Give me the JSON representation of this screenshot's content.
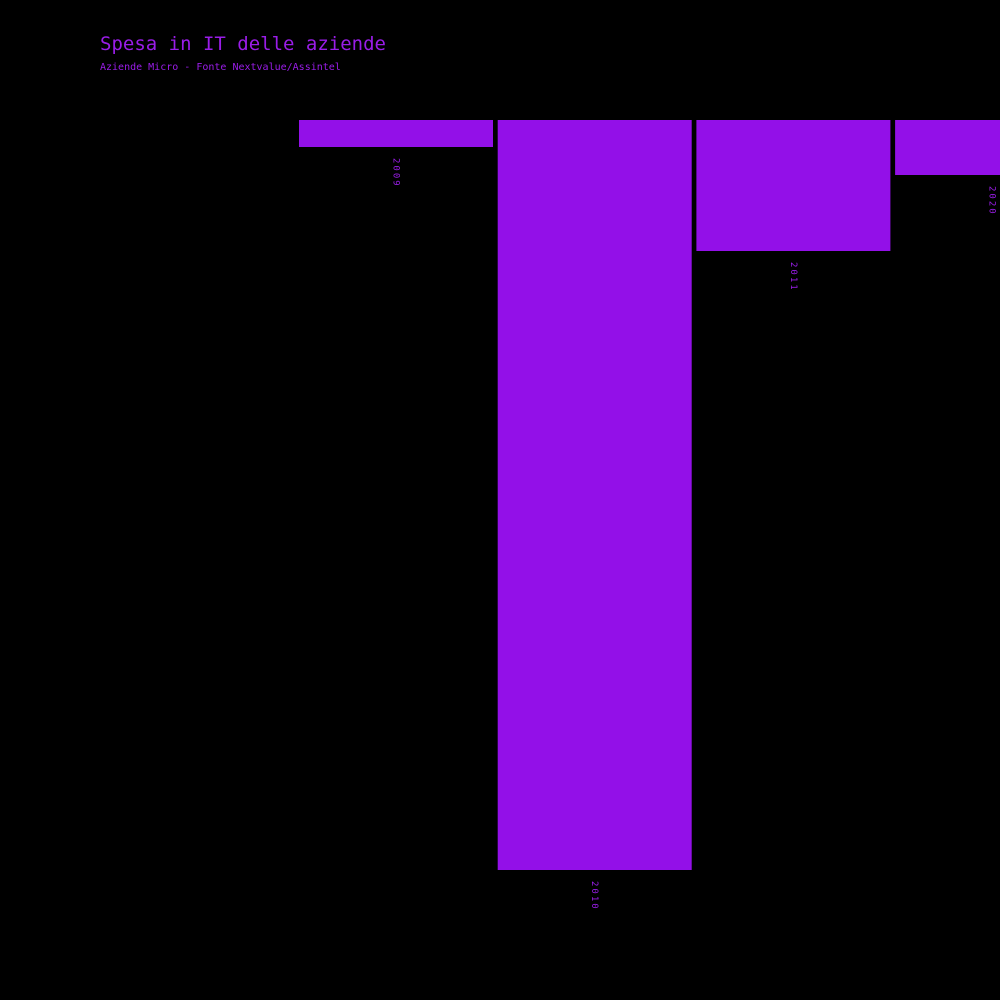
{
  "chart_data": {
    "type": "bar",
    "title": "Spesa in IT delle aziende",
    "subtitle": "Aziende Micro - Fonte Nextvalue/Assintel",
    "categories": [
      "2009",
      "2010",
      "2011",
      "2020"
    ],
    "values": [
      27,
      750,
      131,
      55
    ],
    "color": "#9310e8"
  }
}
